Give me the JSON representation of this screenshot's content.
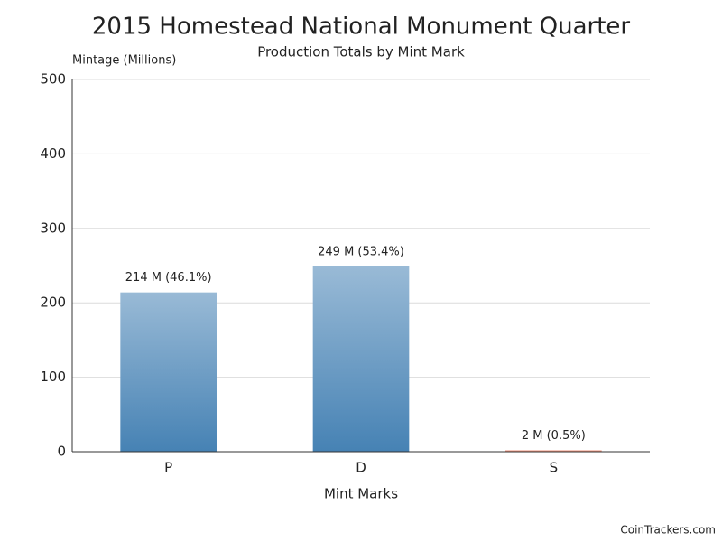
{
  "chart_data": {
    "type": "bar",
    "title": "2015 Homestead National Monument Quarter",
    "subtitle": "Production Totals by Mint Mark",
    "y_label": "Mintage (Millions)",
    "x_label": "Mint Marks",
    "categories": [
      "P",
      "D",
      "S"
    ],
    "values": [
      214,
      249,
      2
    ],
    "value_labels": [
      "214 M (46.1%)",
      "249 M (53.4%)",
      "2 M (0.5%)"
    ],
    "colors": [
      "#4682b4",
      "#4682b4",
      "#e9745a"
    ],
    "ylim": [
      0,
      500
    ],
    "yticks": [
      0,
      100,
      200,
      300,
      400,
      500
    ],
    "grid": true,
    "source": "CoinTrackers.com"
  }
}
